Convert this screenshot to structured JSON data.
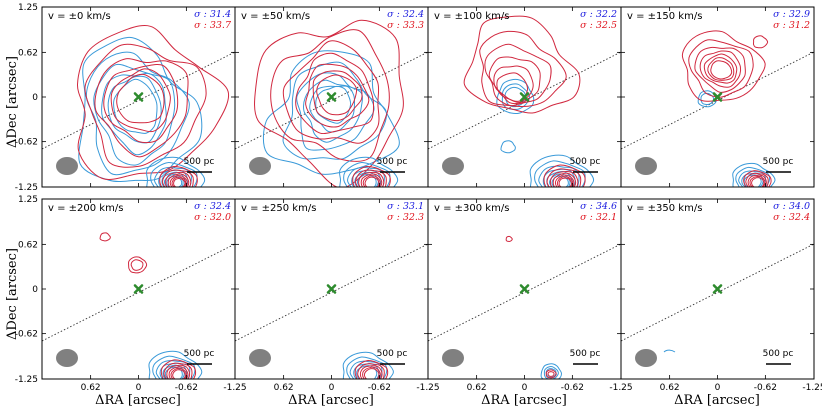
{
  "chart_data": {
    "type": "contour",
    "xlabel": "ΔRA [arcsec]",
    "ylabel": "ΔDec [arcsec]",
    "xlim": [
      1.25,
      -1.25
    ],
    "ylim": [
      -1.25,
      1.25
    ],
    "xticks": [
      "0.62",
      "0",
      "-0.62",
      "-1.25"
    ],
    "yticks": [
      "1.25",
      "0.62",
      "0",
      "-0.62",
      "-1.25"
    ],
    "scalebar_label": "500 pc",
    "colors": {
      "blue": "#3a9ad9",
      "red": "#d1283f",
      "marker": "#2e8b2e"
    },
    "panels": [
      {
        "velocity": "v = ±0 km/s",
        "sigma_blue": "σ : 31.4",
        "sigma_red": "σ : 33.7"
      },
      {
        "velocity": "v = ±50 km/s",
        "sigma_blue": "σ : 32.4",
        "sigma_red": "σ : 33.3"
      },
      {
        "velocity": "v = ±100 km/s",
        "sigma_blue": "σ : 32.2",
        "sigma_red": "σ : 32.5"
      },
      {
        "velocity": "v = ±150 km/s",
        "sigma_blue": "σ : 32.9",
        "sigma_red": "σ : 31.2"
      },
      {
        "velocity": "v = ±200 km/s",
        "sigma_blue": "σ : 32.4",
        "sigma_red": "σ : 32.0"
      },
      {
        "velocity": "v = ±250 km/s",
        "sigma_blue": "σ : 33.1",
        "sigma_red": "σ : 32.3"
      },
      {
        "velocity": "v = ±300 km/s",
        "sigma_blue": "σ : 34.6",
        "sigma_red": "σ : 32.1"
      },
      {
        "velocity": "v = ±350 km/s",
        "sigma_blue": "σ : 34.0",
        "sigma_red": "σ : 32.4"
      }
    ]
  }
}
